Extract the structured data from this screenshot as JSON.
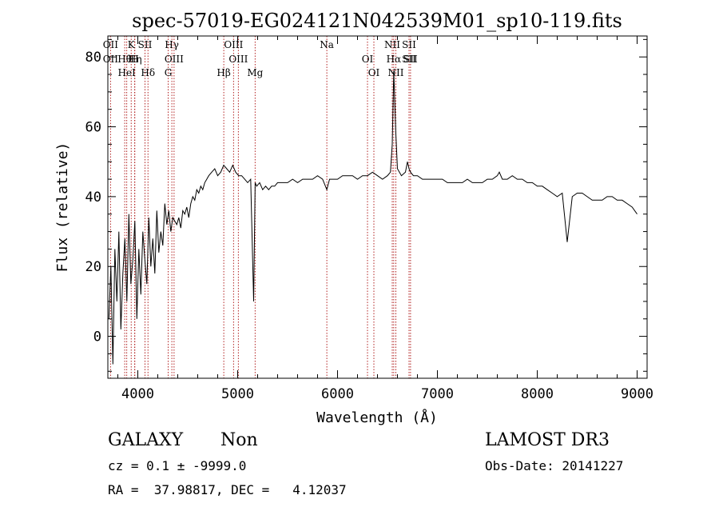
{
  "chart_data": {
    "type": "line",
    "title": "spec-57019-EG024121N042539M01_sp10-119.fits",
    "xlabel": "Wavelength (Å)",
    "ylabel": "Flux (relative)",
    "xlim": [
      3700,
      9100
    ],
    "ylim": [
      -12,
      86
    ],
    "xticks": [
      4000,
      5000,
      6000,
      7000,
      8000,
      9000
    ],
    "yticks": [
      0,
      20,
      40,
      60,
      80
    ],
    "grid": false,
    "colors": {
      "spectrum": "#000000",
      "lines": "#b22222"
    },
    "line_markers": [
      {
        "x": 3727,
        "labels": [
          "OII",
          "OII"
        ]
      },
      {
        "x": 3869,
        "labels": [
          "Hθ"
        ]
      },
      {
        "x": 3889,
        "labels": [
          "HeI"
        ]
      },
      {
        "x": 3934,
        "labels": [
          "K"
        ]
      },
      {
        "x": 3968,
        "labels": [
          "H"
        ]
      },
      {
        "x": 4102,
        "labels": [
          "Hδ"
        ]
      },
      {
        "x": 4072,
        "labels": [
          "SII"
        ]
      },
      {
        "x": 3970,
        "labels": [
          "Hη"
        ]
      },
      {
        "x": 4304,
        "labels": [
          "G"
        ]
      },
      {
        "x": 4341,
        "labels": [
          "Hγ"
        ]
      },
      {
        "x": 4363,
        "labels": [
          "OIII"
        ]
      },
      {
        "x": 4861,
        "labels": [
          "Hβ"
        ]
      },
      {
        "x": 4959,
        "labels": [
          "OIII"
        ]
      },
      {
        "x": 5007,
        "labels": [
          "OIII"
        ]
      },
      {
        "x": 5175,
        "labels": [
          "Mg"
        ]
      },
      {
        "x": 5893,
        "labels": [
          "Na"
        ]
      },
      {
        "x": 6300,
        "labels": [
          "OI"
        ]
      },
      {
        "x": 6364,
        "labels": [
          "OI"
        ]
      },
      {
        "x": 6548,
        "labels": [
          "NII"
        ]
      },
      {
        "x": 6563,
        "labels": [
          "Hα"
        ]
      },
      {
        "x": 6584,
        "labels": [
          "NII"
        ]
      },
      {
        "x": 6716,
        "labels": [
          "SII",
          "SII"
        ]
      },
      {
        "x": 6731,
        "labels": [
          "SII"
        ]
      }
    ],
    "series": [
      {
        "x": [
          3710,
          3730,
          3750,
          3770,
          3790,
          3810,
          3830,
          3850,
          3870,
          3890,
          3910,
          3930,
          3950,
          3970,
          3990,
          4010,
          4030,
          4050,
          4070,
          4090,
          4110,
          4130,
          4150,
          4170,
          4190,
          4210,
          4230,
          4250,
          4270,
          4290,
          4310,
          4330,
          4350,
          4370,
          4390,
          4410,
          4430,
          4450,
          4470,
          4490,
          4510,
          4530,
          4550,
          4570,
          4590,
          4610,
          4630,
          4650,
          4670,
          4690,
          4710,
          4740,
          4770,
          4800,
          4830,
          4860,
          4890,
          4920,
          4950,
          4980,
          5010,
          5040,
          5070,
          5100,
          5130,
          5160,
          5175,
          5190,
          5220,
          5250,
          5280,
          5310,
          5340,
          5370,
          5400,
          5450,
          5500,
          5550,
          5600,
          5650,
          5700,
          5750,
          5800,
          5850,
          5893,
          5920,
          5950,
          6000,
          6050,
          6100,
          6150,
          6200,
          6250,
          6300,
          6350,
          6400,
          6450,
          6500,
          6530,
          6548,
          6563,
          6584,
          6600,
          6640,
          6680,
          6700,
          6716,
          6731,
          6760,
          6800,
          6850,
          6900,
          6950,
          7000,
          7050,
          7100,
          7150,
          7200,
          7250,
          7300,
          7350,
          7400,
          7450,
          7500,
          7550,
          7600,
          7620,
          7650,
          7700,
          7750,
          7800,
          7850,
          7900,
          7950,
          8000,
          8050,
          8100,
          8150,
          8200,
          8250,
          8300,
          8350,
          8400,
          8450,
          8500,
          8550,
          8600,
          8650,
          8700,
          8750,
          8800,
          8850,
          8900,
          8950,
          9000
        ],
        "y": [
          5,
          20,
          -8,
          25,
          10,
          30,
          2,
          18,
          28,
          10,
          35,
          15,
          22,
          33,
          5,
          25,
          12,
          30,
          22,
          15,
          34,
          20,
          28,
          18,
          36,
          24,
          30,
          26,
          38,
          32,
          36,
          30,
          34,
          33,
          32,
          34,
          31,
          36,
          35,
          37,
          34,
          38,
          40,
          39,
          42,
          41,
          43,
          42,
          44,
          45,
          46,
          47,
          48,
          46,
          47,
          49,
          48,
          47,
          49,
          47,
          46,
          46,
          45,
          44,
          45,
          10,
          44,
          43,
          44,
          42,
          43,
          42,
          43,
          43,
          44,
          44,
          44,
          45,
          44,
          45,
          45,
          45,
          46,
          45,
          42,
          45,
          45,
          45,
          46,
          46,
          46,
          45,
          46,
          46,
          47,
          46,
          45,
          46,
          47,
          55,
          76,
          58,
          48,
          46,
          47,
          50,
          48,
          47,
          46,
          46,
          45,
          45,
          45,
          45,
          45,
          44,
          44,
          44,
          44,
          45,
          44,
          44,
          44,
          45,
          45,
          46,
          47,
          45,
          45,
          46,
          45,
          45,
          44,
          44,
          43,
          43,
          42,
          41,
          40,
          41,
          27,
          40,
          41,
          41,
          40,
          39,
          39,
          39,
          40,
          40,
          39,
          39,
          38,
          37,
          35
        ]
      }
    ],
    "info": {
      "class_label": "GALAXY",
      "subclass_label": "Non",
      "survey_label": "LAMOST DR3",
      "cz_line": "cz = 0.1 ± -9999.0",
      "obs_date_line": "Obs-Date: 20141227",
      "coords_line": "RA =  37.98817, DEC =   4.12037"
    }
  }
}
